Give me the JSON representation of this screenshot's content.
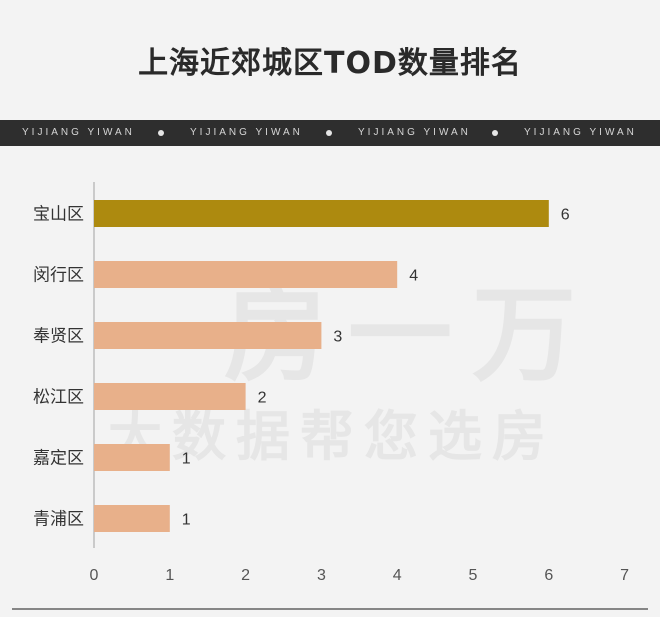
{
  "chart_data": {
    "type": "bar",
    "orientation": "horizontal",
    "title": "上海近郊城区TOD数量排名",
    "categories": [
      "宝山区",
      "闵行区",
      "奉贤区",
      "松江区",
      "嘉定区",
      "青浦区"
    ],
    "values": [
      6,
      4,
      3,
      2,
      1,
      1
    ],
    "xlim": [
      0,
      7
    ],
    "xticks": [
      "0",
      "1",
      "2",
      "3",
      "4",
      "5",
      "6",
      "7"
    ],
    "grid": false,
    "legend": "none"
  },
  "banner": {
    "items": [
      "YIJIANG YIWAN",
      "YIJIANG YIWAN",
      "YIJIANG YIWAN",
      "YIJIANG YIWAN"
    ]
  },
  "watermark": {
    "line1": "一房一万",
    "line2": "大数据帮您选房"
  },
  "colors": {
    "highlight": "#ad8a0f",
    "bar": "#e8b08a",
    "label": "#333333"
  }
}
